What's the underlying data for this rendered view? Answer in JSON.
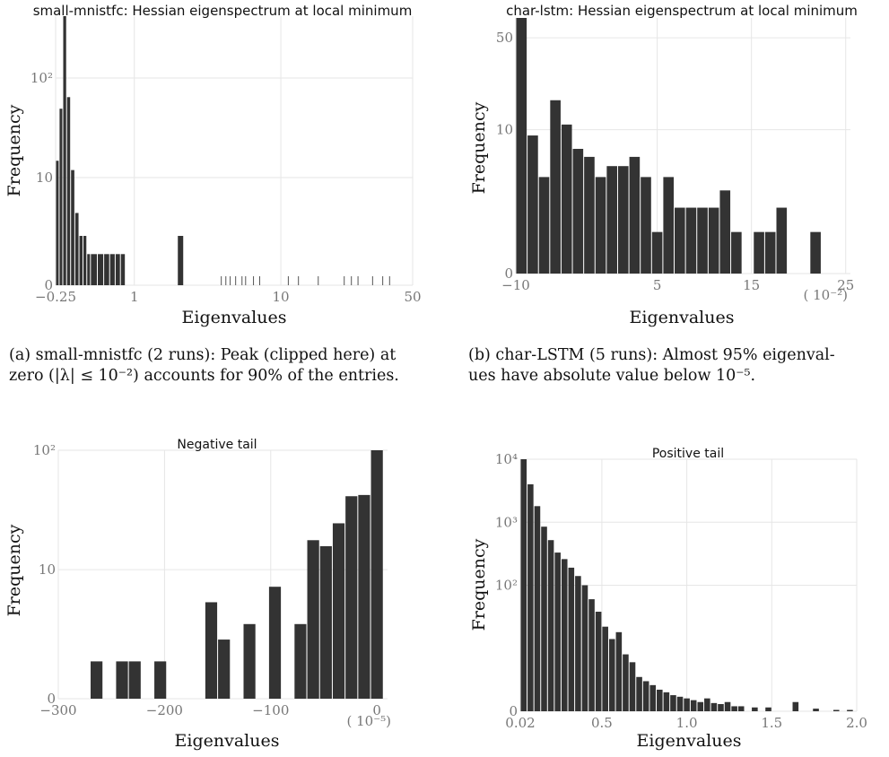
{
  "captions": {
    "a": [
      "(a) small-mnistfc (2 runs): Peak (clipped here) at",
      "zero (|λ| ≤ 10⁻²) accounts for 90% of the entries."
    ],
    "b": [
      "(b) char-LSTM (5 runs): Almost 95% eigenval-",
      "ues have absolute value below 10⁻⁵."
    ]
  },
  "chart_data": [
    {
      "id": "a",
      "type": "bar",
      "title": "small-mnistfc: Hessian eigenspectrum at local minimum",
      "xlabel": "Eigenvalues",
      "ylabel": "Frequency",
      "xscale": "symlog",
      "yscale": "symlog",
      "xticks": [
        {
          "value": -0.25,
          "label": "−0.25"
        },
        {
          "value": 1,
          "label": "1"
        },
        {
          "value": 10,
          "label": "10"
        },
        {
          "value": 50,
          "label": "50"
        }
      ],
      "yticks": [
        {
          "value": 0,
          "label": "0"
        },
        {
          "value": 10,
          "label": "10"
        },
        {
          "value": 100,
          "label": "10²"
        }
      ],
      "grid": true,
      "bars": [
        {
          "x0": -0.25,
          "x1": -0.2,
          "value": 15
        },
        {
          "x0": -0.2,
          "x1": -0.15,
          "value": 50
        },
        {
          "x0": -0.15,
          "x1": -0.1,
          "value": 400
        },
        {
          "x0": -0.1,
          "x1": -0.05,
          "value": 65
        },
        {
          "x0": -0.05,
          "x1": 0,
          "value": 12
        },
        {
          "x0": 0,
          "x1": 0.05,
          "value": 4
        },
        {
          "x0": 0.05,
          "x1": 0.1,
          "value": 2
        },
        {
          "x0": 0.1,
          "x1": 0.15,
          "value": 2
        },
        {
          "x0": 0.15,
          "x1": 0.2,
          "value": 1
        },
        {
          "x0": 0.2,
          "x1": 0.3,
          "value": 1
        },
        {
          "x0": 0.3,
          "x1": 0.4,
          "value": 1
        },
        {
          "x0": 0.4,
          "x1": 0.5,
          "value": 1
        },
        {
          "x0": 0.5,
          "x1": 0.6,
          "value": 1
        },
        {
          "x0": 0.6,
          "x1": 0.7,
          "value": 1
        },
        {
          "x0": 0.7,
          "x1": 0.8,
          "value": 1
        },
        {
          "x0": 2.3,
          "x1": 2.55,
          "value": 2
        }
      ],
      "rug": [
        4.5,
        4.8,
        5.1,
        5.5,
        6.0,
        6.3,
        7.0,
        7.6,
        11.0,
        12.5,
        16.0,
        22,
        24,
        26,
        31,
        35,
        38
      ]
    },
    {
      "id": "b",
      "type": "bar",
      "title": "char-lstm: Hessian eigenspectrum at local minimum",
      "xlabel": "Eigenvalues",
      "ylabel": "Frequency",
      "yscale": "symlog",
      "xunit": "( 10⁻²)",
      "xticks": [
        {
          "value": -10,
          "label": "−10"
        },
        {
          "value": 5,
          "label": "5"
        },
        {
          "value": 15,
          "label": "15"
        },
        {
          "value": 25,
          "label": "25"
        }
      ],
      "yticks": [
        {
          "value": 0,
          "label": "0"
        },
        {
          "value": 10,
          "label": "10"
        },
        {
          "value": 50,
          "label": "50"
        }
      ],
      "grid": true,
      "bars": [
        {
          "x0": -10,
          "x1": -8.8,
          "value": 70
        },
        {
          "x0": -8.8,
          "x1": -7.6,
          "value": 9
        },
        {
          "x0": -7.6,
          "x1": -6.4,
          "value": 4
        },
        {
          "x0": -6.4,
          "x1": -5.2,
          "value": 17
        },
        {
          "x0": -5.2,
          "x1": -4.0,
          "value": 11
        },
        {
          "x0": -4.0,
          "x1": -2.8,
          "value": 7
        },
        {
          "x0": -2.8,
          "x1": -1.6,
          "value": 6
        },
        {
          "x0": -1.6,
          "x1": -0.4,
          "value": 4
        },
        {
          "x0": -0.4,
          "x1": 0.8,
          "value": 5
        },
        {
          "x0": 0.8,
          "x1": 2.0,
          "value": 5
        },
        {
          "x0": 2.0,
          "x1": 3.2,
          "value": 6
        },
        {
          "x0": 3.2,
          "x1": 4.4,
          "value": 4
        },
        {
          "x0": 4.4,
          "x1": 5.6,
          "value": 1
        },
        {
          "x0": 5.6,
          "x1": 6.8,
          "value": 4
        },
        {
          "x0": 6.8,
          "x1": 8.0,
          "value": 2
        },
        {
          "x0": 8.0,
          "x1": 9.2,
          "value": 2
        },
        {
          "x0": 9.2,
          "x1": 10.4,
          "value": 2
        },
        {
          "x0": 10.4,
          "x1": 11.6,
          "value": 2
        },
        {
          "x0": 11.6,
          "x1": 12.8,
          "value": 3
        },
        {
          "x0": 12.8,
          "x1": 14.0,
          "value": 1
        },
        {
          "x0": 15.2,
          "x1": 16.4,
          "value": 1
        },
        {
          "x0": 16.4,
          "x1": 17.6,
          "value": 1
        },
        {
          "x0": 17.6,
          "x1": 18.8,
          "value": 2
        },
        {
          "x0": 21.2,
          "x1": 22.4,
          "value": 1
        }
      ]
    },
    {
      "id": "c",
      "type": "bar",
      "title": "Negative tail",
      "xlabel": "Eigenvalues",
      "ylabel": "Frequency",
      "yscale": "symlog",
      "xunit": "( 10⁻⁵)",
      "xticks": [
        {
          "value": -300,
          "label": "−300"
        },
        {
          "value": -200,
          "label": "−200"
        },
        {
          "value": -100,
          "label": "−100"
        },
        {
          "value": 0,
          "label": "0"
        }
      ],
      "yticks": [
        {
          "value": 0,
          "label": "0"
        },
        {
          "value": 10,
          "label": "10"
        },
        {
          "value": 100,
          "label": "10²"
        }
      ],
      "grid": true,
      "bars": [
        {
          "x0": -270,
          "x1": -258,
          "value": 1
        },
        {
          "x0": -246,
          "x1": -234,
          "value": 1
        },
        {
          "x0": -234,
          "x1": -222,
          "value": 1
        },
        {
          "x0": -210,
          "x1": -198,
          "value": 1
        },
        {
          "x0": -162,
          "x1": -150,
          "value": 5
        },
        {
          "x0": -150,
          "x1": -138,
          "value": 2
        },
        {
          "x0": -126,
          "x1": -114,
          "value": 3
        },
        {
          "x0": -102,
          "x1": -90,
          "value": 7
        },
        {
          "x0": -78,
          "x1": -66,
          "value": 3
        },
        {
          "x0": -66,
          "x1": -54,
          "value": 18
        },
        {
          "x0": -54,
          "x1": -42,
          "value": 16
        },
        {
          "x0": -42,
          "x1": -30,
          "value": 25
        },
        {
          "x0": -30,
          "x1": -18,
          "value": 42
        },
        {
          "x0": -18,
          "x1": -6,
          "value": 43
        },
        {
          "x0": -6,
          "x1": 6,
          "value": 100
        }
      ]
    },
    {
      "id": "d",
      "type": "bar",
      "title": "Positive tail",
      "xlabel": "Eigenvalues",
      "ylabel": "Frequency",
      "yscale": "log",
      "xticks": [
        {
          "value": 0.02,
          "label": "0.02"
        },
        {
          "value": 0.5,
          "label": "0.5"
        },
        {
          "value": 1.0,
          "label": "1.0"
        },
        {
          "value": 1.5,
          "label": "1.5"
        },
        {
          "value": 2.0,
          "label": "2.0"
        }
      ],
      "yticks": [
        {
          "value": 1,
          "label": "0"
        },
        {
          "value": 100,
          "label": "10²"
        },
        {
          "value": 1000,
          "label": "10³"
        },
        {
          "value": 10000,
          "label": "10⁴"
        }
      ],
      "grid": true,
      "bars": [
        {
          "x0": 0.02,
          "x1": 0.06,
          "value": 10000
        },
        {
          "x0": 0.06,
          "x1": 0.1,
          "value": 4000
        },
        {
          "x0": 0.1,
          "x1": 0.14,
          "value": 1800
        },
        {
          "x0": 0.14,
          "x1": 0.18,
          "value": 850
        },
        {
          "x0": 0.18,
          "x1": 0.22,
          "value": 520
        },
        {
          "x0": 0.22,
          "x1": 0.26,
          "value": 330
        },
        {
          "x0": 0.26,
          "x1": 0.3,
          "value": 260
        },
        {
          "x0": 0.3,
          "x1": 0.34,
          "value": 190
        },
        {
          "x0": 0.34,
          "x1": 0.38,
          "value": 140
        },
        {
          "x0": 0.38,
          "x1": 0.42,
          "value": 100
        },
        {
          "x0": 0.42,
          "x1": 0.46,
          "value": 60
        },
        {
          "x0": 0.46,
          "x1": 0.5,
          "value": 38
        },
        {
          "x0": 0.5,
          "x1": 0.54,
          "value": 22
        },
        {
          "x0": 0.54,
          "x1": 0.58,
          "value": 14
        },
        {
          "x0": 0.58,
          "x1": 0.62,
          "value": 18
        },
        {
          "x0": 0.62,
          "x1": 0.66,
          "value": 8
        },
        {
          "x0": 0.66,
          "x1": 0.7,
          "value": 6
        },
        {
          "x0": 0.7,
          "x1": 0.74,
          "value": 3.5
        },
        {
          "x0": 0.74,
          "x1": 0.78,
          "value": 3
        },
        {
          "x0": 0.78,
          "x1": 0.82,
          "value": 2.6
        },
        {
          "x0": 0.82,
          "x1": 0.86,
          "value": 2.2
        },
        {
          "x0": 0.86,
          "x1": 0.9,
          "value": 2
        },
        {
          "x0": 0.9,
          "x1": 0.94,
          "value": 1.8
        },
        {
          "x0": 0.94,
          "x1": 0.98,
          "value": 1.7
        },
        {
          "x0": 0.98,
          "x1": 1.02,
          "value": 1.6
        },
        {
          "x0": 1.02,
          "x1": 1.06,
          "value": 1.5
        },
        {
          "x0": 1.06,
          "x1": 1.1,
          "value": 1.4
        },
        {
          "x0": 1.1,
          "x1": 1.14,
          "value": 1.6
        },
        {
          "x0": 1.14,
          "x1": 1.18,
          "value": 1.35
        },
        {
          "x0": 1.18,
          "x1": 1.22,
          "value": 1.3
        },
        {
          "x0": 1.22,
          "x1": 1.26,
          "value": 1.4
        },
        {
          "x0": 1.26,
          "x1": 1.3,
          "value": 1.2
        },
        {
          "x0": 1.3,
          "x1": 1.34,
          "value": 1.2
        },
        {
          "x0": 1.38,
          "x1": 1.42,
          "value": 1.15
        },
        {
          "x0": 1.46,
          "x1": 1.5,
          "value": 1.15
        },
        {
          "x0": 1.62,
          "x1": 1.66,
          "value": 1.4
        },
        {
          "x0": 1.74,
          "x1": 1.78,
          "value": 1.1
        },
        {
          "x0": 1.86,
          "x1": 1.9,
          "value": 1.05
        },
        {
          "x0": 1.94,
          "x1": 1.98,
          "value": 1.05
        }
      ]
    }
  ]
}
